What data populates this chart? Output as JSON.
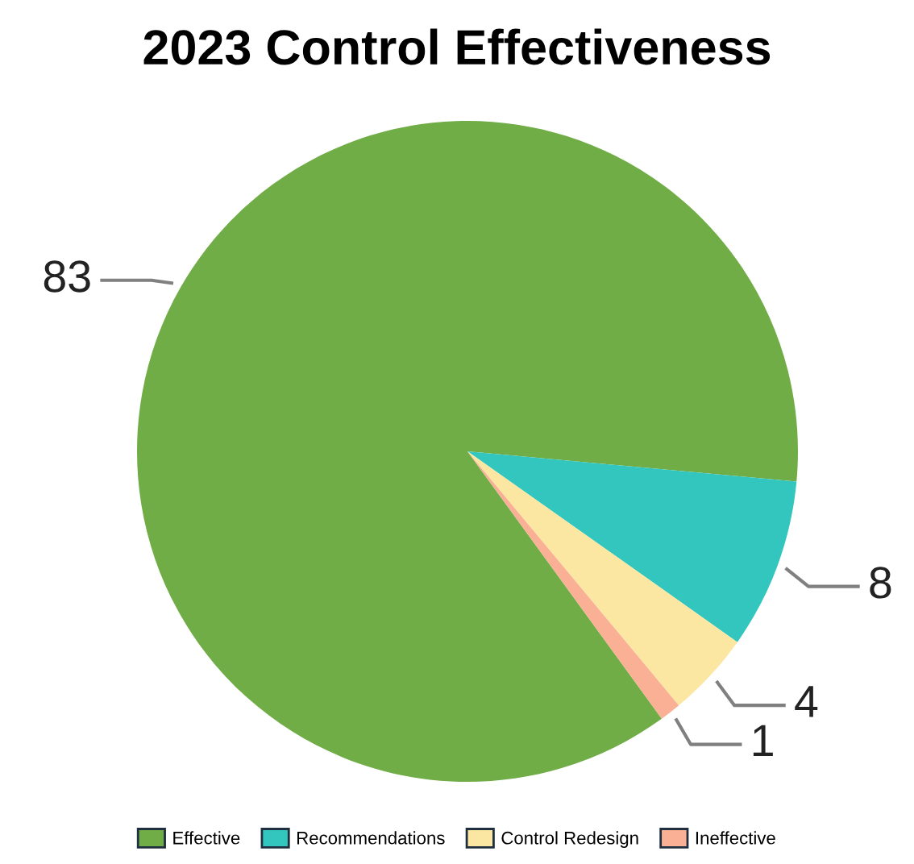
{
  "chart_data": {
    "type": "pie",
    "title": "2023 Control Effectiveness",
    "categories": [
      "Effective",
      "Recommendations",
      "Control Redesign",
      "Ineffective"
    ],
    "values": [
      83,
      8,
      4,
      1
    ],
    "colors": [
      "#70ad47",
      "#33c6bf",
      "#fbe6a2",
      "#f9b095"
    ],
    "data_labels": true,
    "legend": "bottom"
  }
}
